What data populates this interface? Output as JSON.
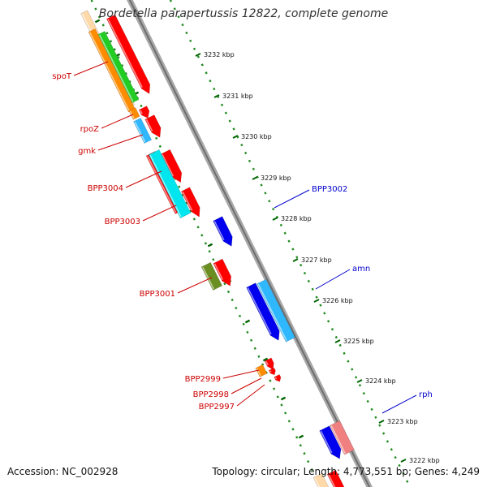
{
  "header": {
    "title": "Bordetella parapertussis 12822, complete genome"
  },
  "footer": {
    "accession": "Accession: NC_002928",
    "summary": "Topology: circular; Length: 4,773,551 bp; Genes: 4,249"
  },
  "ruler": {
    "ticks": [
      "3232 kbp",
      "3231 kbp",
      "3230 kbp",
      "3229 kbp",
      "3228 kbp",
      "3227 kbp",
      "3226 kbp",
      "3225 kbp",
      "3224 kbp",
      "3223 kbp",
      "3222 kbp"
    ]
  },
  "labels": {
    "left": [
      "spoT",
      "rpoZ",
      "gmk",
      "BPP3004",
      "BPP3003",
      "BPP3001",
      "BPP2999",
      "BPP2998",
      "BPP2997"
    ],
    "right": [
      "BPP3002",
      "amn",
      "rph"
    ]
  },
  "colors": {
    "cds_forward": "#ff0000",
    "cds_reverse": "#0000ee",
    "label_left": "#cc0000",
    "label_right": "#0000cc",
    "backbone": "#888888",
    "ruler_dots": "#228b22",
    "cyan": "#00e5ee",
    "light_blue": "#30b8ff",
    "orange": "#ff8c00",
    "green": "#22cc22",
    "olive": "#6b8e23",
    "pink": "#f08080"
  }
}
